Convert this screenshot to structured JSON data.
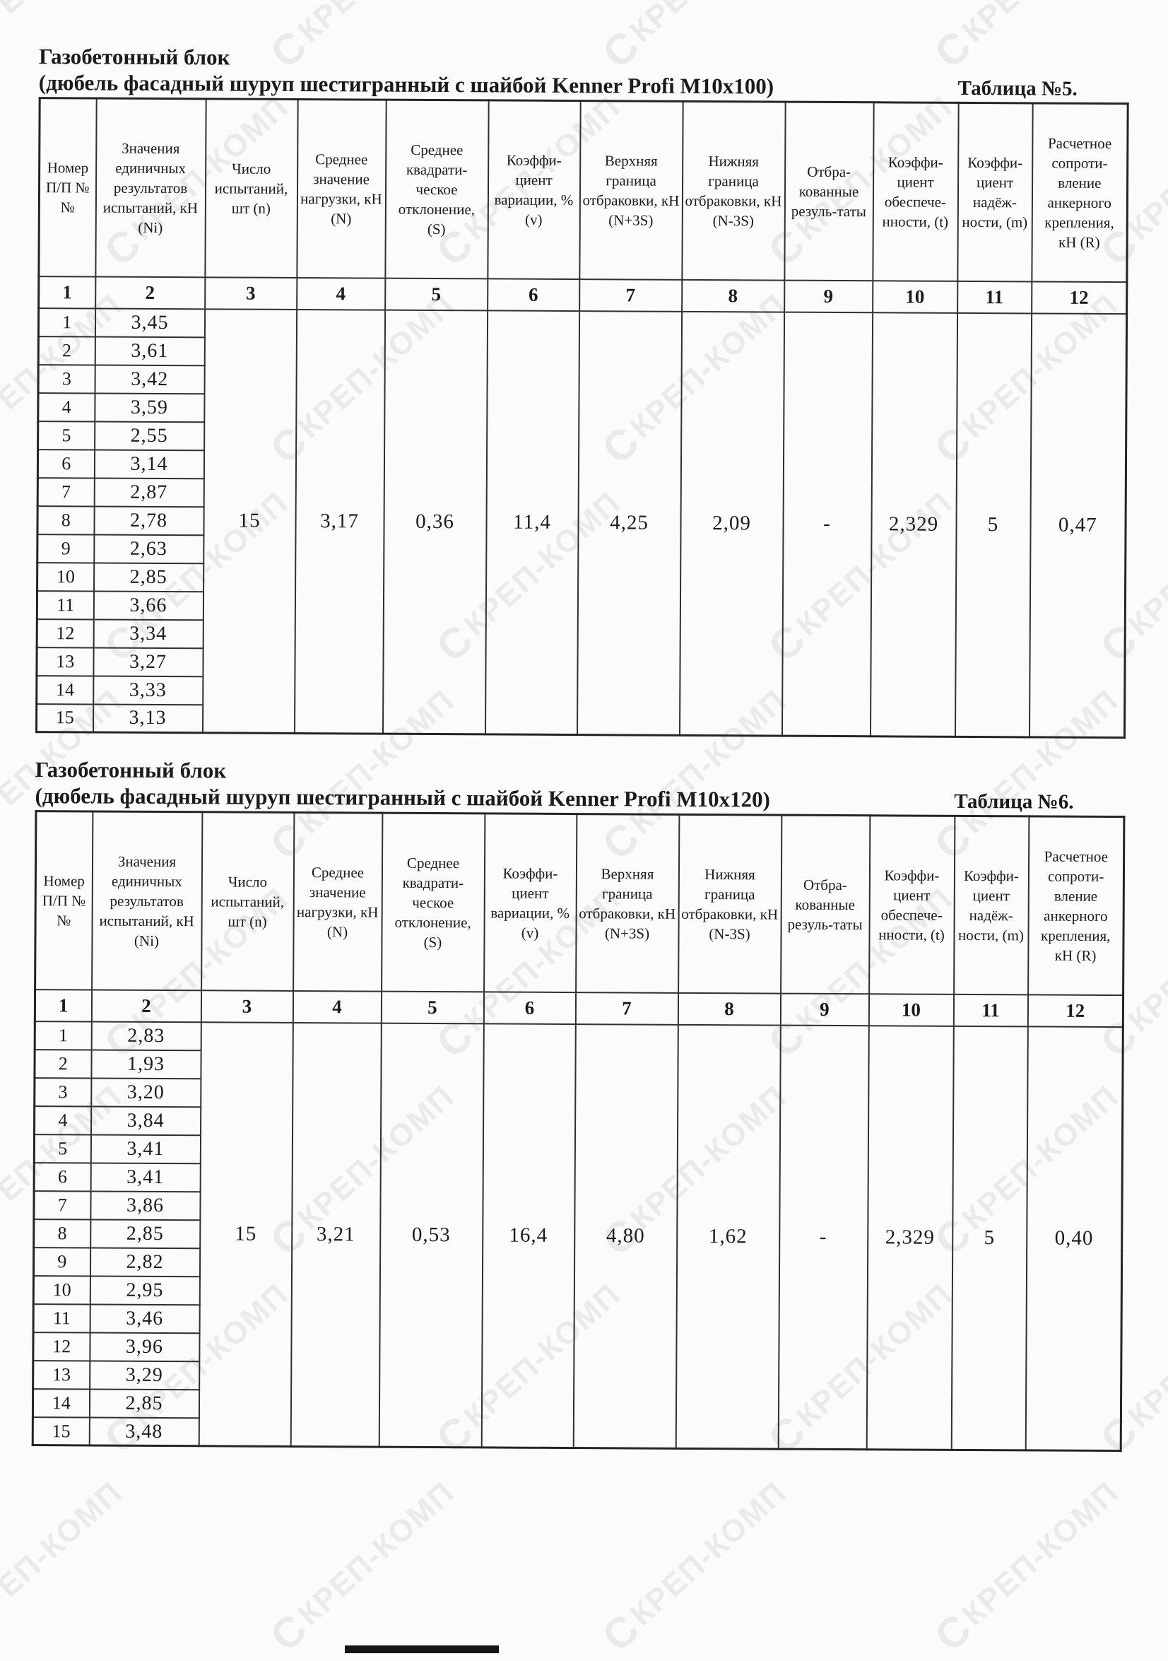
{
  "watermark": {
    "logo_glyph": "С",
    "text": "КРЕП-КОМП"
  },
  "tables": [
    {
      "material": "Газобетонный блок",
      "subtitle": "(дюбель фасадный шуруп шестигранный с шайбой Kenner Profi M10x100)",
      "table_label": "Таблица №5.",
      "headers": [
        "Номер П/П №№",
        "Значения единичных результатов испытаний, кН (Ni)",
        "Число испытаний, шт (n)",
        "Среднее значение нагрузки, кН (N)",
        "Среднее квадрати-ческое отклонение, (S)",
        "Коэффи-циент вариации, % (v)",
        "Верхняя граница отбраковки, кН (N+3S)",
        "Нижняя граница отбраковки, кН (N-3S)",
        "Отбра-кованные резуль-таты",
        "Коэффи-циент обеспече-нности, (t)",
        "Коэффи-циент надёж-ности, (m)",
        "Расчетное сопроти-вление анкерного крепления, кН (R)"
      ],
      "column_numbers": [
        "1",
        "2",
        "3",
        "4",
        "5",
        "6",
        "7",
        "8",
        "9",
        "10",
        "11",
        "12"
      ],
      "rows": [
        {
          "num": "1",
          "value": "3,45"
        },
        {
          "num": "2",
          "value": "3,61"
        },
        {
          "num": "3",
          "value": "3,42"
        },
        {
          "num": "4",
          "value": "3,59"
        },
        {
          "num": "5",
          "value": "2,55"
        },
        {
          "num": "6",
          "value": "3,14"
        },
        {
          "num": "7",
          "value": "2,87"
        },
        {
          "num": "8",
          "value": "2,78"
        },
        {
          "num": "9",
          "value": "2,63"
        },
        {
          "num": "10",
          "value": "2,85"
        },
        {
          "num": "11",
          "value": "3,66"
        },
        {
          "num": "12",
          "value": "3,34"
        },
        {
          "num": "13",
          "value": "3,27"
        },
        {
          "num": "14",
          "value": "3,33"
        },
        {
          "num": "15",
          "value": "3,13"
        }
      ],
      "summary": {
        "n": "15",
        "mean": "3,17",
        "s": "0,36",
        "v": "11,4",
        "upper": "4,25",
        "lower": "2,09",
        "rejected": "-",
        "t": "2,329",
        "m": "5",
        "r": "0,47"
      }
    },
    {
      "material": "Газобетонный блок",
      "subtitle": "(дюбель фасадный шуруп шестигранный с шайбой Kenner Profi M10x120)",
      "table_label": "Таблица №6.",
      "headers": [
        "Номер П/П №№",
        "Значения единичных результатов испытаний, кН (Ni)",
        "Число испытаний, шт (n)",
        "Среднее значение нагрузки, кН (N)",
        "Среднее квадрати-ческое отклонение, (S)",
        "Коэффи-циент вариации, % (v)",
        "Верхняя граница отбраковки, кН (N+3S)",
        "Нижняя граница отбраковки, кН (N-3S)",
        "Отбра-кованные резуль-таты",
        "Коэффи-циент обеспече-нности, (t)",
        "Коэффи-циент надёж-ности, (m)",
        "Расчетное сопроти-вление анкерного крепления, кН (R)"
      ],
      "column_numbers": [
        "1",
        "2",
        "3",
        "4",
        "5",
        "6",
        "7",
        "8",
        "9",
        "10",
        "11",
        "12"
      ],
      "rows": [
        {
          "num": "1",
          "value": "2,83"
        },
        {
          "num": "2",
          "value": "1,93"
        },
        {
          "num": "3",
          "value": "3,20"
        },
        {
          "num": "4",
          "value": "3,84"
        },
        {
          "num": "5",
          "value": "3,41"
        },
        {
          "num": "6",
          "value": "3,41"
        },
        {
          "num": "7",
          "value": "3,86"
        },
        {
          "num": "8",
          "value": "2,85"
        },
        {
          "num": "9",
          "value": "2,82"
        },
        {
          "num": "10",
          "value": "2,95"
        },
        {
          "num": "11",
          "value": "3,46"
        },
        {
          "num": "12",
          "value": "3,96"
        },
        {
          "num": "13",
          "value": "3,29"
        },
        {
          "num": "14",
          "value": "2,85"
        },
        {
          "num": "15",
          "value": "3,48"
        }
      ],
      "summary": {
        "n": "15",
        "mean": "3,21",
        "s": "0,53",
        "v": "16,4",
        "upper": "4,80",
        "lower": "1,62",
        "rejected": "-",
        "t": "2,329",
        "m": "5",
        "r": "0,40"
      }
    }
  ]
}
